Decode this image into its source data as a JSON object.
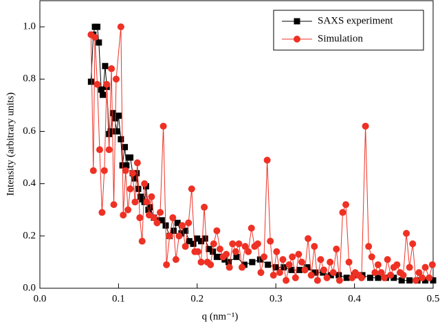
{
  "chart_data": {
    "type": "line",
    "xlabel": "q (nm⁻¹)",
    "ylabel": "Intensity (arbitrary units)",
    "xlim": [
      0,
      0.5
    ],
    "ylim": [
      0,
      1.1
    ],
    "xticks": [
      {
        "value": 0,
        "label": "0.0"
      },
      0.1,
      0.2,
      0.3,
      0.4,
      0.5
    ],
    "yticks": [
      {
        "value": 0,
        "label": "0.0"
      },
      0.2,
      0.4,
      0.6,
      0.8,
      {
        "value": 1,
        "label": "1.0"
      }
    ],
    "legend": "upper right",
    "series": [
      {
        "name": "SAXS experiment",
        "color": "#000000",
        "marker": "square",
        "x": [
          0.065,
          0.068,
          0.07,
          0.073,
          0.075,
          0.078,
          0.08,
          0.083,
          0.085,
          0.088,
          0.09,
          0.093,
          0.095,
          0.098,
          0.1,
          0.103,
          0.105,
          0.108,
          0.11,
          0.113,
          0.115,
          0.118,
          0.12,
          0.123,
          0.125,
          0.128,
          0.13,
          0.133,
          0.135,
          0.138,
          0.14,
          0.145,
          0.15,
          0.155,
          0.16,
          0.165,
          0.17,
          0.175,
          0.18,
          0.185,
          0.19,
          0.195,
          0.2,
          0.205,
          0.21,
          0.215,
          0.22,
          0.225,
          0.23,
          0.235,
          0.24,
          0.25,
          0.26,
          0.27,
          0.28,
          0.29,
          0.3,
          0.31,
          0.32,
          0.33,
          0.34,
          0.35,
          0.36,
          0.37,
          0.38,
          0.39,
          0.4,
          0.41,
          0.42,
          0.43,
          0.44,
          0.45,
          0.46,
          0.47,
          0.48,
          0.49,
          0.5
        ],
        "values": [
          0.79,
          0.97,
          1.0,
          1.0,
          0.94,
          0.76,
          0.74,
          0.85,
          0.77,
          0.59,
          0.6,
          0.67,
          0.65,
          0.6,
          0.66,
          0.57,
          0.47,
          0.54,
          0.47,
          0.5,
          0.5,
          0.44,
          0.42,
          0.44,
          0.38,
          0.35,
          0.34,
          0.33,
          0.39,
          0.3,
          0.31,
          0.27,
          0.26,
          0.26,
          0.24,
          0.2,
          0.22,
          0.25,
          0.21,
          0.22,
          0.18,
          0.17,
          0.19,
          0.18,
          0.19,
          0.15,
          0.14,
          0.12,
          0.12,
          0.11,
          0.1,
          0.12,
          0.09,
          0.1,
          0.11,
          0.09,
          0.08,
          0.08,
          0.07,
          0.07,
          0.08,
          0.06,
          0.06,
          0.05,
          0.05,
          0.04,
          0.05,
          0.05,
          0.04,
          0.04,
          0.04,
          0.04,
          0.03,
          0.03,
          0.03,
          0.03,
          0.03
        ]
      },
      {
        "name": "Simulation",
        "color": "#ee3124",
        "marker": "circle",
        "x": [
          0.065,
          0.068,
          0.07,
          0.073,
          0.076,
          0.079,
          0.082,
          0.085,
          0.088,
          0.091,
          0.094,
          0.097,
          0.103,
          0.106,
          0.109,
          0.112,
          0.115,
          0.118,
          0.121,
          0.124,
          0.127,
          0.13,
          0.133,
          0.136,
          0.139,
          0.142,
          0.145,
          0.149,
          0.153,
          0.157,
          0.161,
          0.165,
          0.169,
          0.173,
          0.177,
          0.181,
          0.185,
          0.189,
          0.193,
          0.197,
          0.201,
          0.205,
          0.209,
          0.213,
          0.217,
          0.221,
          0.225,
          0.229,
          0.233,
          0.237,
          0.241,
          0.245,
          0.249,
          0.253,
          0.257,
          0.261,
          0.265,
          0.269,
          0.273,
          0.277,
          0.281,
          0.285,
          0.289,
          0.293,
          0.297,
          0.301,
          0.305,
          0.309,
          0.313,
          0.317,
          0.321,
          0.325,
          0.329,
          0.333,
          0.337,
          0.341,
          0.345,
          0.349,
          0.353,
          0.357,
          0.361,
          0.365,
          0.369,
          0.373,
          0.377,
          0.381,
          0.385,
          0.389,
          0.393,
          0.397,
          0.401,
          0.405,
          0.409,
          0.414,
          0.418,
          0.422,
          0.426,
          0.43,
          0.434,
          0.438,
          0.442,
          0.446,
          0.45,
          0.454,
          0.458,
          0.462,
          0.466,
          0.47,
          0.474,
          0.478,
          0.482,
          0.486,
          0.49,
          0.495,
          0.499
        ],
        "values": [
          0.97,
          0.45,
          0.96,
          0.78,
          0.53,
          0.29,
          0.45,
          0.78,
          0.53,
          0.84,
          0.32,
          0.8,
          1.0,
          0.28,
          0.45,
          0.3,
          0.38,
          0.44,
          0.33,
          0.48,
          0.27,
          0.18,
          0.4,
          0.33,
          0.28,
          0.35,
          0.27,
          0.25,
          0.29,
          0.62,
          0.09,
          0.2,
          0.27,
          0.11,
          0.2,
          0.24,
          0.16,
          0.25,
          0.38,
          0.14,
          0.14,
          0.1,
          0.31,
          0.1,
          0.09,
          0.17,
          0.22,
          0.15,
          0.12,
          0.13,
          0.08,
          0.17,
          0.14,
          0.17,
          0.08,
          0.16,
          0.14,
          0.23,
          0.16,
          0.17,
          0.06,
          0.12,
          0.49,
          0.18,
          0.05,
          0.14,
          0.06,
          0.11,
          0.03,
          0.09,
          0.12,
          0.04,
          0.13,
          0.1,
          0.07,
          0.19,
          0.05,
          0.16,
          0.03,
          0.11,
          0.07,
          0.04,
          0.1,
          0.06,
          0.15,
          0.03,
          0.29,
          0.32,
          0.1,
          0.04,
          0.06,
          0.05,
          0.04,
          0.62,
          0.16,
          0.12,
          0.06,
          0.09,
          0.06,
          0.04,
          0.11,
          0.05,
          0.08,
          0.09,
          0.06,
          0.05,
          0.21,
          0.08,
          0.17,
          0.03,
          0.06,
          0.04,
          0.08,
          0.04,
          0.09
        ]
      }
    ]
  }
}
